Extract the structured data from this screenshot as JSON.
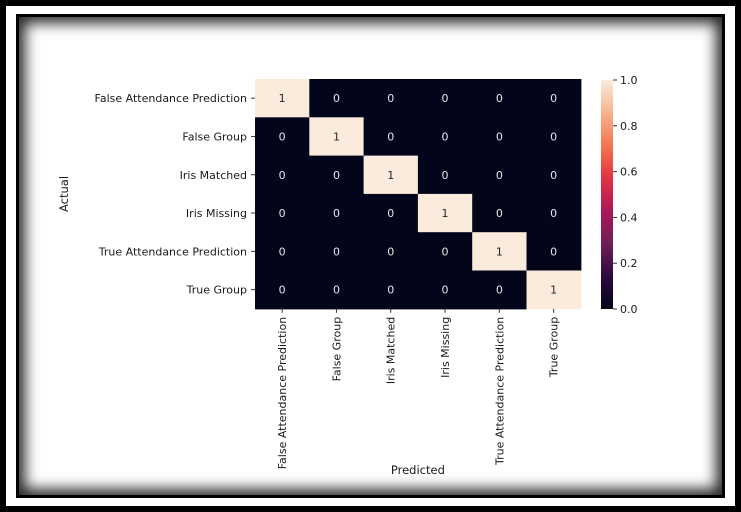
{
  "chart_data": {
    "type": "heatmap",
    "xlabel": "Predicted",
    "ylabel": "Actual",
    "x_categories": [
      "False Attendance Prediction",
      "False Group",
      "Iris Matched",
      "Iris Missing",
      "True Attendance Prediction",
      "True Group"
    ],
    "y_categories": [
      "False Attendance Prediction",
      "False Group",
      "Iris Matched",
      "Iris Missing",
      "True Attendance Prediction",
      "True Group"
    ],
    "values": [
      [
        1,
        0,
        0,
        0,
        0,
        0
      ],
      [
        0,
        1,
        0,
        0,
        0,
        0
      ],
      [
        0,
        0,
        1,
        0,
        0,
        0
      ],
      [
        0,
        0,
        0,
        1,
        0,
        0
      ],
      [
        0,
        0,
        0,
        0,
        1,
        0
      ],
      [
        0,
        0,
        0,
        0,
        0,
        1
      ]
    ],
    "colorbar": {
      "range": [
        0.0,
        1.0
      ],
      "ticks": [
        "0.0",
        "0.2",
        "0.4",
        "0.6",
        "0.8",
        "1.0"
      ],
      "colors": [
        "#03051a",
        "#2b0b3f",
        "#701f57",
        "#ad1759",
        "#e13342",
        "#f37651",
        "#f6b48e",
        "#faebdd"
      ]
    },
    "grid": false,
    "legend": "right"
  }
}
